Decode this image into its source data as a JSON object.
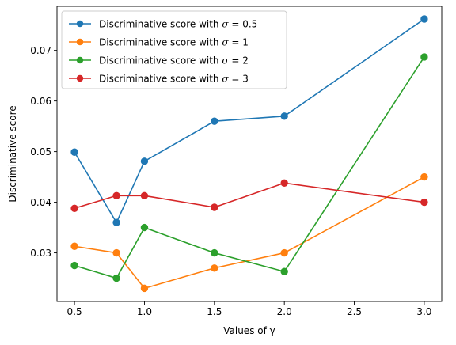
{
  "chart_data": {
    "type": "line",
    "title": "",
    "xlabel": "Values of γ",
    "ylabel": "Discriminative score",
    "x": [
      0.5,
      0.8,
      1.0,
      1.5,
      2.0,
      3.0
    ],
    "xlim": [
      0.375,
      3.125
    ],
    "ylim": [
      0.0204,
      0.0787
    ],
    "xticks": [
      "0.5",
      "1.0",
      "1.5",
      "2.0",
      "2.5",
      "3.0"
    ],
    "xtick_values": [
      0.5,
      1.0,
      1.5,
      2.0,
      2.5,
      3.0
    ],
    "yticks": [
      "0.03",
      "0.04",
      "0.05",
      "0.06",
      "0.07"
    ],
    "ytick_values": [
      0.03,
      0.04,
      0.05,
      0.06,
      0.07
    ],
    "grid": false,
    "legend_position": "top-left",
    "series": [
      {
        "name": "Discriminative score with σ = 0.5",
        "legend_prefix": "Discriminative score with ",
        "legend_symbol": "σ",
        "legend_suffix": " = 0.5",
        "color": "#1f77b4",
        "values": [
          0.0499,
          0.036,
          0.0481,
          0.056,
          0.057,
          0.0762
        ]
      },
      {
        "name": "Discriminative score with σ = 1",
        "legend_prefix": "Discriminative score with ",
        "legend_symbol": "σ",
        "legend_suffix": " = 1",
        "color": "#ff7f0e",
        "values": [
          0.0313,
          0.03,
          0.023,
          0.027,
          0.03,
          0.045
        ]
      },
      {
        "name": "Discriminative score with σ = 2",
        "legend_prefix": "Discriminative score with ",
        "legend_symbol": "σ",
        "legend_suffix": " = 2",
        "color": "#2ca02c",
        "values": [
          0.0275,
          0.025,
          0.035,
          0.03,
          0.0263,
          0.0687
        ]
      },
      {
        "name": "Discriminative score with σ = 3",
        "legend_prefix": "Discriminative score with ",
        "legend_symbol": "σ",
        "legend_suffix": " = 3",
        "color": "#d62728",
        "values": [
          0.0388,
          0.0413,
          0.0413,
          0.039,
          0.0438,
          0.04
        ]
      }
    ]
  }
}
